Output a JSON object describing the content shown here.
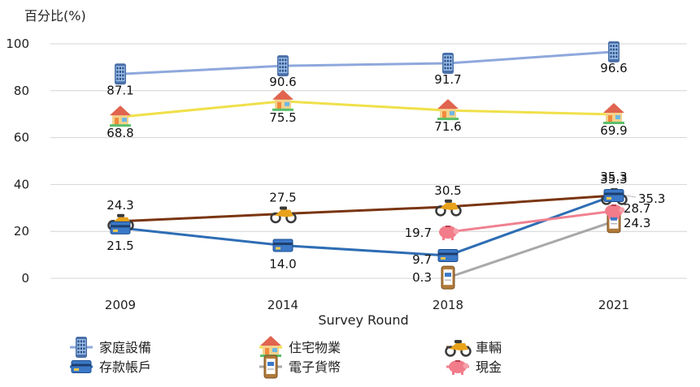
{
  "chart_data": {
    "type": "line",
    "title": "",
    "ylabel": "百分比(%)",
    "xlabel": "Survey Round",
    "categories": [
      "2009",
      "2014",
      "2018",
      "2021"
    ],
    "ylim": [
      0,
      100
    ],
    "yticks": [
      "0",
      "20",
      "40",
      "60",
      "80",
      "100"
    ],
    "grid": true,
    "legend_position": "bottom",
    "series": [
      {
        "name": "家庭設備",
        "icon": "phone-icon",
        "color": "#8fa8dc",
        "x": [
          "2009",
          "2014",
          "2018",
          "2021"
        ],
        "values": [
          87.1,
          90.6,
          91.7,
          96.6
        ],
        "labels": [
          "87.1",
          "90.6",
          "91.7",
          "96.6"
        ]
      },
      {
        "name": "住宅物業",
        "icon": "house-icon",
        "color": "#f0e04a",
        "x": [
          "2009",
          "2014",
          "2018",
          "2021"
        ],
        "values": [
          68.8,
          75.5,
          71.6,
          69.9
        ],
        "labels": [
          "68.8",
          "75.5",
          "71.6",
          "69.9"
        ]
      },
      {
        "name": "車輛",
        "icon": "motorcycle-icon",
        "color": "#7a3510",
        "x": [
          "2009",
          "2014",
          "2018",
          "2021"
        ],
        "values": [
          24.3,
          27.5,
          30.5,
          35.3
        ],
        "labels": [
          "24.3",
          "27.5",
          "30.5",
          "35.3"
        ]
      },
      {
        "name": "存款帳戶",
        "icon": "bank-card-icon",
        "color": "#2e6db4",
        "x": [
          "2009",
          "2014",
          "2018",
          "2021"
        ],
        "values": [
          21.5,
          14.0,
          9.7,
          35.3
        ],
        "labels": [
          "21.5",
          "14.0",
          "9.7",
          "35.3"
        ]
      },
      {
        "name": "電子貨幣",
        "icon": "e-wallet-icon",
        "color": "#a8a8a8",
        "x": [
          "2018",
          "2021"
        ],
        "values": [
          0.3,
          24.3
        ],
        "labels": [
          "0.3",
          "24.3"
        ]
      },
      {
        "name": "現金",
        "icon": "piggy-bank-icon",
        "color": "#f08090",
        "x": [
          "2018",
          "2021"
        ],
        "values": [
          19.7,
          28.7
        ],
        "labels": [
          "19.7",
          "28.7"
        ]
      }
    ]
  }
}
